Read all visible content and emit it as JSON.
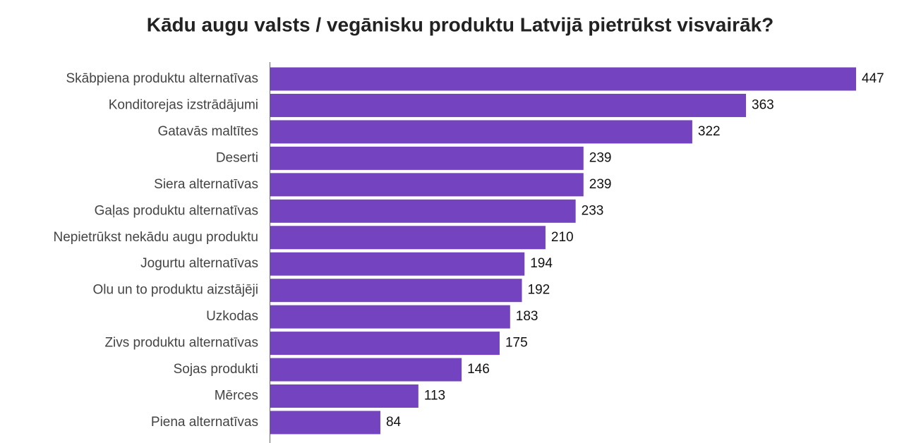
{
  "chart_data": {
    "type": "bar",
    "orientation": "horizontal",
    "title": "Kādu augu valsts / vegānisku produktu Latvijā pietrūkst visvairāk?",
    "categories": [
      "Skābpiena produktu alternatīvas",
      "Konditorejas izstrādājumi",
      "Gatavās maltītes",
      "Deserti",
      "Siera alternatīvas",
      "Gaļas produktu alternatīvas",
      "Nepietrūkst nekādu augu produktu",
      "Jogurtu alternatīvas",
      "Olu un to produktu aizstājēji",
      "Uzkodas",
      "Zivs produktu alternatīvas",
      "Sojas produkti",
      "Mērces",
      "Piena alternatīvas"
    ],
    "values": [
      447,
      363,
      322,
      239,
      239,
      233,
      210,
      194,
      192,
      183,
      175,
      146,
      113,
      84
    ],
    "color": "#7443bf"
  }
}
